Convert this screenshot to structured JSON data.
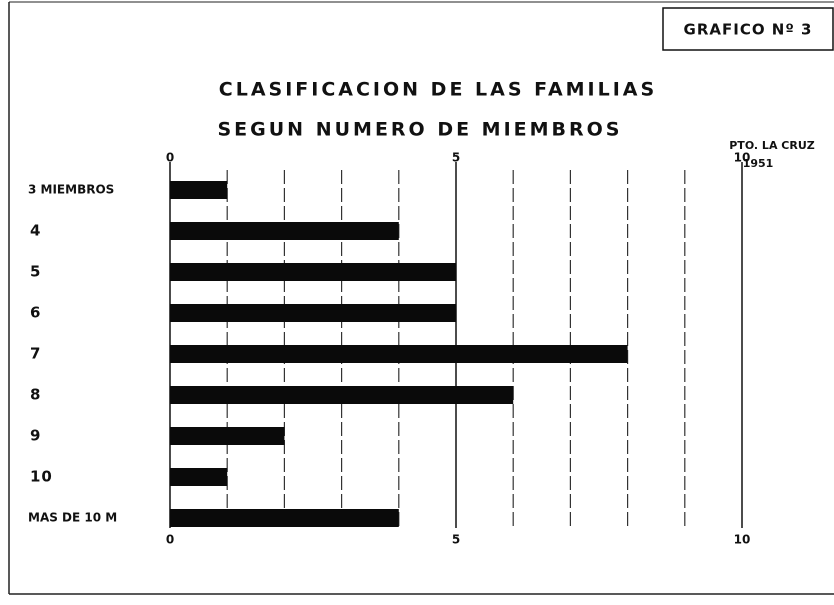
{
  "chart_data": {
    "type": "barh",
    "badge": "GRAFICO Nº 3",
    "title": "CLASIFICACION DE LAS FAMILIAS",
    "subtitle": "SEGUN NUMERO DE MIEMBROS",
    "annotations": [
      "PTO. LA CRUZ",
      "1951"
    ],
    "categories": [
      "3 MIEMBROS",
      "4",
      "5",
      "6",
      "7",
      "8",
      "9",
      "10",
      "MAS DE 10 M"
    ],
    "values": [
      1,
      4,
      5,
      5,
      8,
      6,
      2,
      1,
      4
    ],
    "color": "#0a0a0a",
    "xlim": [
      0,
      10
    ],
    "xticks": [
      0,
      5,
      10
    ],
    "minor_xticks": [
      1,
      2,
      3,
      4,
      6,
      7,
      8,
      9
    ],
    "grid": true
  }
}
